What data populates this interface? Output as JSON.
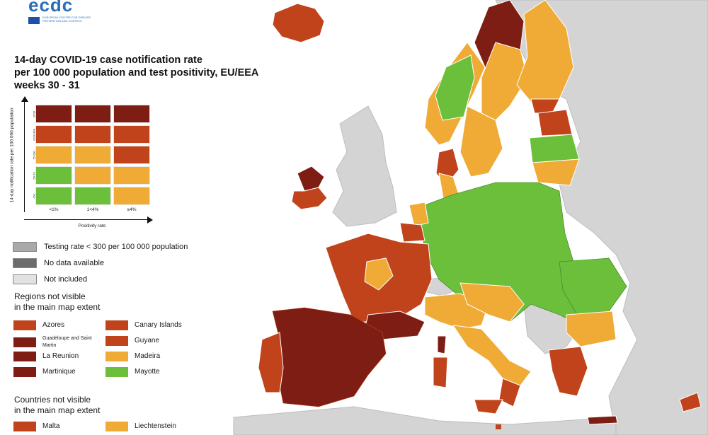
{
  "logo": {
    "word": "ecdc",
    "subtitle": "EUROPEAN CENTRE FOR DISEASE PREVENTION AND CONTROL"
  },
  "title": {
    "line1": "14-day COVID-19 case notification rate",
    "line2": "per 100 000 population and test positivity, EU/EEA",
    "line3": "weeks 30 - 31"
  },
  "colors": {
    "dark_red": "#7d1d14",
    "red": "#c0431b",
    "orange": "#efab35",
    "green": "#6cbf3b",
    "grey_testing": "#a9a9a9",
    "grey_nodata": "#6c6c6c",
    "grey_notincluded": "#e2e2e2",
    "sea": "#ffffff",
    "land_outside": "#d3d3d3"
  },
  "matrix": {
    "y_axis_label": "14-day notification rate per 100 000 population",
    "x_axis_label": "Positivity rate",
    "row_labels": [
      "≥500",
      "≥200-499",
      "75-200",
      "50-74",
      "<50"
    ],
    "col_labels": [
      "<1%",
      "1<4%",
      "≥4%"
    ],
    "cells": [
      [
        "dark_red",
        "dark_red",
        "dark_red"
      ],
      [
        "red",
        "red",
        "red"
      ],
      [
        "orange",
        "orange",
        "red"
      ],
      [
        "green",
        "orange",
        "orange"
      ],
      [
        "green",
        "green",
        "orange"
      ]
    ]
  },
  "legend": {
    "testing": "Testing rate < 300 per 100 000 population",
    "no_data": "No data available",
    "not_included": "Not included"
  },
  "regions": {
    "heading_line1": "Regions not visible",
    "heading_line2": "in the main map extent",
    "items": [
      {
        "name": "Azores",
        "color": "red"
      },
      {
        "name": "Canary Islands",
        "color": "red"
      },
      {
        "name": "Guadeloupe and Saint Martin",
        "color": "dark_red"
      },
      {
        "name": "Guyane",
        "color": "red"
      },
      {
        "name": "La Reunion",
        "color": "dark_red"
      },
      {
        "name": "Madeira",
        "color": "orange"
      },
      {
        "name": "Martinique",
        "color": "dark_red"
      },
      {
        "name": "Mayotte",
        "color": "green"
      }
    ]
  },
  "countries": {
    "heading_line1": "Countries not visible",
    "heading_line2": "in the main map extent",
    "items": [
      {
        "name": "Malta",
        "color": "red"
      },
      {
        "name": "Liechtenstein",
        "color": "orange"
      }
    ]
  }
}
